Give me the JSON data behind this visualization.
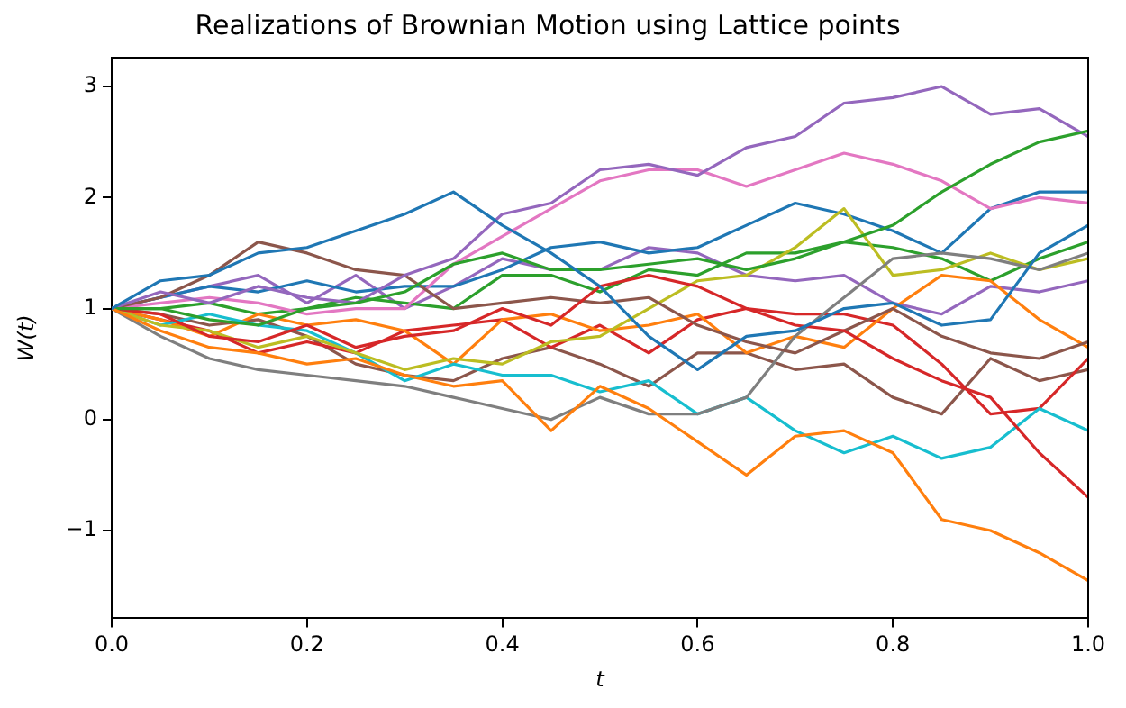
{
  "chart_data": {
    "type": "line",
    "title": "Realizations of Brownian Motion using Lattice points",
    "xlabel": "t",
    "ylabel": "W(t)",
    "x": [
      0,
      0.05,
      0.1,
      0.15,
      0.2,
      0.25,
      0.3,
      0.35,
      0.4,
      0.45,
      0.5,
      0.55,
      0.6,
      0.65,
      0.7,
      0.75,
      0.8,
      0.85,
      0.9,
      0.95,
      1
    ],
    "xlim": [
      0,
      1
    ],
    "xticks": [
      {
        "value": 0,
        "label": "0.0"
      },
      {
        "value": 0.2,
        "label": "0.2"
      },
      {
        "value": 0.4,
        "label": "0.4"
      },
      {
        "value": 0.6,
        "label": "0.6"
      },
      {
        "value": 0.8,
        "label": "0.8"
      },
      {
        "value": 1,
        "label": "1.0"
      }
    ],
    "ylim": [
      -1.79,
      3.26
    ],
    "yticks": [
      {
        "value": -1,
        "label": "−1"
      },
      0,
      1,
      2,
      3
    ],
    "grid": false,
    "legend": false,
    "marker": "none",
    "line_style": "solid",
    "series": [
      {
        "color": "#1f77b4",
        "values": [
          1,
          1.25,
          1.3,
          1.5,
          1.55,
          1.7,
          1.85,
          2.05,
          1.75,
          1.5,
          1.2,
          0.75,
          0.45,
          0.75,
          0.8,
          1.0,
          1.05,
          0.85,
          0.9,
          1.5,
          1.75
        ]
      },
      {
        "color": "#ff7f0e",
        "values": [
          1,
          0.8,
          0.65,
          0.6,
          0.5,
          0.55,
          0.4,
          0.3,
          0.35,
          -0.1,
          0.3,
          0.1,
          -0.2,
          -0.5,
          -0.15,
          -0.1,
          -0.3,
          -0.9,
          -1.0,
          -1.2,
          -1.45
        ]
      },
      {
        "color": "#2ca02c",
        "values": [
          1,
          1.0,
          0.9,
          0.85,
          1.0,
          1.05,
          1.15,
          1.4,
          1.5,
          1.35,
          1.35,
          1.4,
          1.45,
          1.35,
          1.45,
          1.6,
          1.75,
          2.05,
          2.3,
          2.5,
          2.6
        ]
      },
      {
        "color": "#d62728",
        "values": [
          1,
          0.95,
          0.75,
          0.7,
          0.85,
          0.65,
          0.75,
          0.8,
          1.0,
          0.85,
          1.2,
          1.3,
          1.2,
          1.0,
          0.85,
          0.8,
          0.55,
          0.35,
          0.2,
          -0.3,
          -0.7
        ]
      },
      {
        "color": "#9467bd",
        "values": [
          1,
          1.15,
          1.05,
          1.2,
          1.1,
          1.05,
          1.3,
          1.45,
          1.85,
          1.95,
          2.25,
          2.3,
          2.2,
          2.45,
          2.55,
          2.85,
          2.9,
          3.0,
          2.75,
          2.8,
          2.55
        ]
      },
      {
        "color": "#8c564b",
        "values": [
          1,
          1.1,
          1.3,
          1.6,
          1.5,
          1.35,
          1.3,
          1.0,
          1.05,
          1.1,
          1.05,
          1.1,
          0.85,
          0.7,
          0.6,
          0.8,
          1.0,
          0.75,
          0.6,
          0.55,
          0.7
        ]
      },
      {
        "color": "#e377c2",
        "values": [
          1,
          1.05,
          1.1,
          1.05,
          0.95,
          1.0,
          1.0,
          1.4,
          1.65,
          1.9,
          2.15,
          2.25,
          2.25,
          2.1,
          2.25,
          2.4,
          2.3,
          2.15,
          1.9,
          2.0,
          1.95
        ]
      },
      {
        "color": "#7f7f7f",
        "values": [
          1,
          0.75,
          0.55,
          0.45,
          0.4,
          0.35,
          0.3,
          0.2,
          0.1,
          0.0,
          0.2,
          0.05,
          0.05,
          0.2,
          0.75,
          1.1,
          1.45,
          1.5,
          1.45,
          1.35,
          1.5
        ]
      },
      {
        "color": "#bcbd22",
        "values": [
          1,
          0.85,
          0.8,
          0.65,
          0.75,
          0.6,
          0.45,
          0.55,
          0.5,
          0.7,
          0.75,
          1.0,
          1.25,
          1.3,
          1.55,
          1.9,
          1.3,
          1.35,
          1.5,
          1.35,
          1.45
        ]
      },
      {
        "color": "#17becf",
        "values": [
          1,
          0.85,
          0.95,
          0.85,
          0.8,
          0.6,
          0.35,
          0.5,
          0.4,
          0.4,
          0.25,
          0.35,
          0.05,
          0.2,
          -0.1,
          -0.3,
          -0.15,
          -0.35,
          -0.25,
          0.1,
          -0.1
        ]
      },
      {
        "color": "#1f77b4",
        "values": [
          1,
          1.1,
          1.2,
          1.15,
          1.25,
          1.15,
          1.2,
          1.2,
          1.35,
          1.55,
          1.6,
          1.5,
          1.55,
          1.75,
          1.95,
          1.85,
          1.7,
          1.5,
          1.9,
          2.05,
          2.05
        ]
      },
      {
        "color": "#ff7f0e",
        "values": [
          1,
          0.9,
          0.75,
          0.95,
          0.85,
          0.9,
          0.8,
          0.5,
          0.9,
          0.95,
          0.8,
          0.85,
          0.95,
          0.6,
          0.75,
          0.65,
          1.0,
          1.3,
          1.25,
          0.9,
          0.65
        ]
      },
      {
        "color": "#2ca02c",
        "values": [
          1,
          1.0,
          1.05,
          0.95,
          1.0,
          1.1,
          1.05,
          1.0,
          1.3,
          1.3,
          1.15,
          1.35,
          1.3,
          1.5,
          1.5,
          1.6,
          1.55,
          1.45,
          1.25,
          1.45,
          1.6
        ]
      },
      {
        "color": "#d62728",
        "values": [
          1,
          0.9,
          0.8,
          0.6,
          0.7,
          0.6,
          0.8,
          0.85,
          0.9,
          0.65,
          0.85,
          0.6,
          0.9,
          1.0,
          0.95,
          0.95,
          0.85,
          0.5,
          0.05,
          0.1,
          0.55
        ]
      },
      {
        "color": "#9467bd",
        "values": [
          1,
          1.1,
          1.2,
          1.3,
          1.05,
          1.3,
          1.0,
          1.2,
          1.45,
          1.35,
          1.35,
          1.55,
          1.5,
          1.3,
          1.25,
          1.3,
          1.05,
          0.95,
          1.2,
          1.15,
          1.25
        ]
      },
      {
        "color": "#8c564b",
        "values": [
          1,
          0.95,
          0.85,
          0.9,
          0.75,
          0.5,
          0.4,
          0.35,
          0.55,
          0.65,
          0.5,
          0.3,
          0.6,
          0.6,
          0.45,
          0.5,
          0.2,
          0.05,
          0.55,
          0.35,
          0.45
        ]
      }
    ]
  }
}
